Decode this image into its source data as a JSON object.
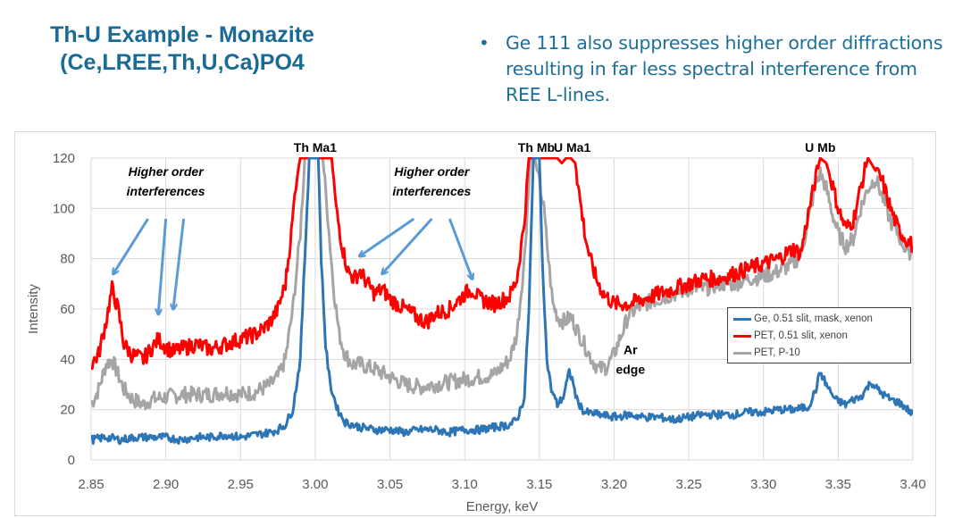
{
  "slide": {
    "title_lines": [
      "Th-U Example - Monazite",
      "(Ce,LREE,Th,U,Ca)PO4"
    ],
    "bullet_char": "•",
    "bullet_text": "Ge 111 also suppresses higher order diffractions resulting in far less spectral interference from REE L-lines."
  },
  "colors": {
    "title": "#1a6a96",
    "bullet": "#1d6f97",
    "ge_series": "#2e75b6",
    "pet_xenon_series": "#ff0000",
    "pet_p10_series": "#a5a5a5",
    "arrows": "#5b9bd5",
    "grid": "#d9d9d9"
  },
  "chart_data": {
    "type": "line",
    "title": "",
    "xlabel": "Energy, keV",
    "ylabel": "Intensity",
    "xlim": [
      2.85,
      3.4
    ],
    "ylim": [
      0,
      120
    ],
    "x_ticks": [
      "2.85",
      "2.90",
      "2.95",
      "3.00",
      "3.05",
      "3.10",
      "3.15",
      "3.20",
      "3.25",
      "3.30",
      "3.35",
      "3.40"
    ],
    "y_ticks": [
      "0",
      "20",
      "40",
      "60",
      "80",
      "100",
      "120"
    ],
    "grid": true,
    "legend_position": "right-middle",
    "series": [
      {
        "name": "Ge, 0.51 slit, mask, xenon",
        "color": "#2e75b6",
        "x": [
          2.85,
          2.86,
          2.87,
          2.88,
          2.89,
          2.9,
          2.91,
          2.92,
          2.93,
          2.94,
          2.95,
          2.96,
          2.97,
          2.975,
          2.98,
          2.985,
          2.99,
          2.993,
          2.996,
          2.998,
          3.0,
          3.002,
          3.004,
          3.007,
          3.01,
          3.015,
          3.02,
          3.03,
          3.04,
          3.05,
          3.06,
          3.07,
          3.08,
          3.09,
          3.1,
          3.11,
          3.12,
          3.13,
          3.135,
          3.14,
          3.143,
          3.146,
          3.148,
          3.15,
          3.152,
          3.155,
          3.158,
          3.162,
          3.166,
          3.17,
          3.172,
          3.175,
          3.18,
          3.19,
          3.2,
          3.21,
          3.22,
          3.23,
          3.24,
          3.25,
          3.26,
          3.27,
          3.28,
          3.29,
          3.3,
          3.31,
          3.32,
          3.33,
          3.335,
          3.338,
          3.342,
          3.348,
          3.355,
          3.36,
          3.365,
          3.372,
          3.378,
          3.385,
          3.39,
          3.395,
          3.4
        ],
        "values": [
          8,
          9,
          8,
          9,
          9,
          9,
          8,
          9,
          9,
          10,
          9,
          10,
          11,
          12,
          14,
          20,
          40,
          80,
          120,
          120,
          120,
          120,
          80,
          45,
          30,
          20,
          15,
          13,
          12,
          12,
          11,
          12,
          12,
          11,
          12,
          12,
          13,
          14,
          16,
          25,
          60,
          120,
          120,
          120,
          80,
          40,
          28,
          22,
          25,
          35,
          32,
          24,
          19,
          18,
          17,
          18,
          17,
          17,
          16,
          17,
          18,
          18,
          18,
          19,
          19,
          20,
          20,
          21,
          28,
          35,
          30,
          24,
          22,
          24,
          25,
          31,
          27,
          24,
          23,
          21,
          18
        ]
      },
      {
        "name": "PET, 0.51 slit, xenon",
        "color": "#ff0000",
        "x": [
          2.85,
          2.855,
          2.86,
          2.864,
          2.868,
          2.872,
          2.877,
          2.885,
          2.89,
          2.895,
          2.9,
          2.905,
          2.91,
          2.92,
          2.93,
          2.94,
          2.95,
          2.96,
          2.965,
          2.97,
          2.975,
          2.98,
          2.984,
          2.987,
          2.99,
          3.011,
          3.014,
          3.018,
          3.022,
          3.026,
          3.03,
          3.035,
          3.04,
          3.045,
          3.05,
          3.06,
          3.07,
          3.075,
          3.08,
          3.09,
          3.1,
          3.105,
          3.11,
          3.12,
          3.13,
          3.135,
          3.14,
          3.143,
          3.162,
          3.165,
          3.168,
          3.171,
          3.174,
          3.178,
          3.181,
          3.184,
          3.188,
          3.193,
          3.2,
          3.21,
          3.22,
          3.23,
          3.24,
          3.25,
          3.26,
          3.27,
          3.28,
          3.29,
          3.3,
          3.31,
          3.32,
          3.325,
          3.33,
          3.335,
          3.338,
          3.342,
          3.345,
          3.35,
          3.355,
          3.36,
          3.365,
          3.37,
          3.375,
          3.38,
          3.385,
          3.39,
          3.395,
          3.4
        ],
        "values": [
          38,
          42,
          55,
          68,
          60,
          46,
          42,
          40,
          44,
          48,
          45,
          43,
          44,
          46,
          44,
          46,
          48,
          50,
          52,
          55,
          60,
          70,
          90,
          110,
          120,
          120,
          100,
          85,
          75,
          72,
          75,
          70,
          66,
          68,
          64,
          60,
          56,
          55,
          58,
          60,
          66,
          68,
          64,
          62,
          65,
          72,
          95,
          120,
          120,
          118,
          120,
          120,
          118,
          100,
          88,
          80,
          72,
          66,
          62,
          62,
          64,
          66,
          68,
          70,
          72,
          72,
          74,
          76,
          78,
          80,
          84,
          82,
          98,
          112,
          120,
          118,
          112,
          100,
          92,
          95,
          108,
          120,
          115,
          110,
          100,
          92,
          88,
          85
        ]
      },
      {
        "name": "PET, P-10",
        "color": "#a5a5a5",
        "x": [
          2.85,
          2.855,
          2.86,
          2.864,
          2.868,
          2.872,
          2.878,
          2.885,
          2.89,
          2.9,
          2.91,
          2.92,
          2.93,
          2.94,
          2.95,
          2.96,
          2.97,
          2.975,
          2.98,
          2.985,
          2.99,
          2.993,
          2.996,
          3.005,
          3.008,
          3.012,
          3.016,
          3.02,
          3.025,
          3.03,
          3.04,
          3.05,
          3.06,
          3.07,
          3.08,
          3.09,
          3.1,
          3.11,
          3.12,
          3.13,
          3.135,
          3.14,
          3.144,
          3.147,
          3.153,
          3.156,
          3.159,
          3.163,
          3.167,
          3.171,
          3.175,
          3.18,
          3.185,
          3.19,
          3.195,
          3.2,
          3.205,
          3.21,
          3.22,
          3.23,
          3.24,
          3.25,
          3.26,
          3.27,
          3.28,
          3.29,
          3.3,
          3.31,
          3.32,
          3.325,
          3.33,
          3.335,
          3.338,
          3.342,
          3.346,
          3.35,
          3.355,
          3.36,
          3.365,
          3.37,
          3.375,
          3.38,
          3.385,
          3.39,
          3.395,
          3.4
        ],
        "values": [
          22,
          28,
          38,
          40,
          34,
          28,
          24,
          22,
          24,
          25,
          26,
          26,
          26,
          27,
          26,
          27,
          30,
          33,
          40,
          60,
          90,
          120,
          120,
          120,
          100,
          70,
          50,
          42,
          38,
          38,
          36,
          33,
          30,
          29,
          30,
          31,
          32,
          33,
          34,
          40,
          50,
          80,
          120,
          120,
          100,
          80,
          62,
          56,
          55,
          57,
          52,
          46,
          40,
          36,
          37,
          42,
          50,
          58,
          62,
          64,
          66,
          68,
          68,
          70,
          70,
          72,
          73,
          75,
          78,
          82,
          95,
          110,
          114,
          108,
          98,
          90,
          85,
          88,
          100,
          108,
          112,
          104,
          95,
          90,
          84,
          82
        ]
      }
    ],
    "annotations": [
      {
        "text": "Th Ma1",
        "x": 3.0,
        "y": 120,
        "kind": "peak-label"
      },
      {
        "text": "Th Mb",
        "x": 3.148,
        "y": 120,
        "kind": "peak-label"
      },
      {
        "text": "U Ma1",
        "x": 3.172,
        "y": 120,
        "kind": "peak-label"
      },
      {
        "text": "U Mb",
        "x": 3.338,
        "y": 120,
        "kind": "peak-label"
      },
      {
        "text_lines": [
          "Higher order",
          "interferences"
        ],
        "x": 2.9,
        "y": 112,
        "kind": "callout",
        "arrow_targets": [
          [
            2.865,
            72
          ],
          [
            2.895,
            56
          ],
          [
            2.905,
            58
          ]
        ]
      },
      {
        "text_lines": [
          "Higher order",
          "interferences"
        ],
        "x": 3.078,
        "y": 112,
        "kind": "callout",
        "arrow_targets": [
          [
            3.03,
            79
          ],
          [
            3.045,
            72
          ],
          [
            3.105,
            70
          ]
        ]
      },
      {
        "text_lines": [
          "Ar",
          "edge"
        ],
        "x": 3.205,
        "y": 42,
        "kind": "label"
      }
    ]
  }
}
